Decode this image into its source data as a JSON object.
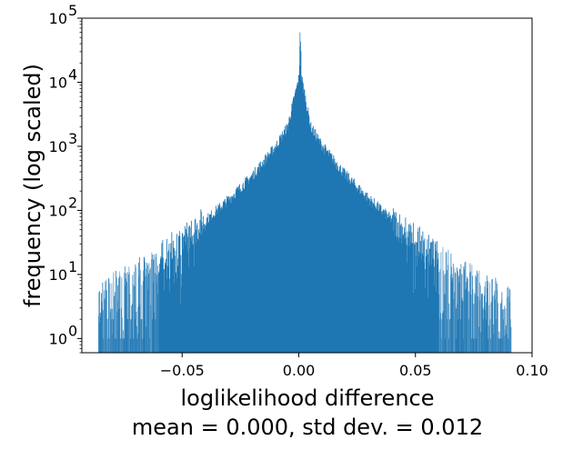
{
  "chart_data": {
    "type": "bar",
    "subtype": "histogram",
    "xlabel": "loglikelihood difference",
    "subtitle": "mean = 0.000, std dev. = 0.012",
    "ylabel": "frequency (log scaled)",
    "yscale": "log",
    "xlim": [
      -0.093,
      0.1
    ],
    "ylim": [
      0.6,
      100000
    ],
    "x_ticks": [
      {
        "value": -0.05,
        "label": "−0.05"
      },
      {
        "value": 0.0,
        "label": "0.00"
      },
      {
        "value": 0.05,
        "label": "0.05"
      },
      {
        "value": 0.1,
        "label": "0.10"
      }
    ],
    "y_ticks": [
      {
        "value": 1,
        "base": "10",
        "exp": "0"
      },
      {
        "value": 10,
        "base": "10",
        "exp": "1"
      },
      {
        "value": 100,
        "base": "10",
        "exp": "2"
      },
      {
        "value": 1000,
        "base": "10",
        "exp": "3"
      },
      {
        "value": 10000,
        "base": "10",
        "exp": "4"
      },
      {
        "value": 100000,
        "base": "10",
        "exp": "5"
      }
    ],
    "bar_color": "#1f77b4",
    "grid": false,
    "mean": 0.0,
    "std_dev": 0.012,
    "data_range": [
      -0.086,
      0.091
    ],
    "envelope": [
      {
        "x": -0.086,
        "y": 4
      },
      {
        "x": -0.08,
        "y": 6
      },
      {
        "x": -0.07,
        "y": 10
      },
      {
        "x": -0.06,
        "y": 18
      },
      {
        "x": -0.05,
        "y": 35
      },
      {
        "x": -0.04,
        "y": 70
      },
      {
        "x": -0.03,
        "y": 150
      },
      {
        "x": -0.02,
        "y": 350
      },
      {
        "x": -0.01,
        "y": 1000
      },
      {
        "x": -0.005,
        "y": 2000
      },
      {
        "x": 0.0,
        "y": 12000
      },
      {
        "x": 0.0005,
        "y": 60000
      },
      {
        "x": 0.001,
        "y": 12000
      },
      {
        "x": 0.005,
        "y": 2000
      },
      {
        "x": 0.01,
        "y": 1000
      },
      {
        "x": 0.02,
        "y": 350
      },
      {
        "x": 0.03,
        "y": 150
      },
      {
        "x": 0.04,
        "y": 70
      },
      {
        "x": 0.05,
        "y": 35
      },
      {
        "x": 0.06,
        "y": 18
      },
      {
        "x": 0.07,
        "y": 10
      },
      {
        "x": 0.08,
        "y": 6
      },
      {
        "x": 0.091,
        "y": 4
      }
    ]
  }
}
